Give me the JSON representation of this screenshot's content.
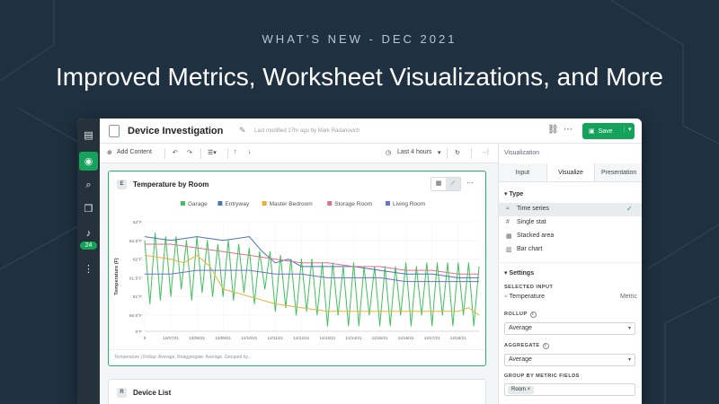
{
  "hero": {
    "eyebrow": "WHAT'S NEW - DEC 2021",
    "title": "Improved Metrics, Worksheet Visualizations, and More"
  },
  "colors": {
    "background": "#1f3040",
    "accent": "#15a25a",
    "rail": "#26323b"
  },
  "rail": {
    "items": [
      {
        "name": "dashboard-icon",
        "glyph": "▤"
      },
      {
        "name": "explore-icon",
        "glyph": "◉"
      },
      {
        "name": "search-icon",
        "glyph": "⌕"
      },
      {
        "name": "bookmark-icon",
        "glyph": "❐"
      },
      {
        "name": "bell-icon",
        "glyph": "♪"
      },
      {
        "name": "more-vertical-icon",
        "glyph": "⋮"
      }
    ],
    "badge": "24"
  },
  "topbar": {
    "title": "Device Investigation",
    "modified": "Last modified 17hr ago by Mark Radanovich",
    "save_label": "Save"
  },
  "toolbar": {
    "add_content": "Add Content",
    "time_range": "Last 4 hours"
  },
  "card": {
    "badge": "E",
    "title": "Temperature by Room",
    "footer": "Temperature | Rollup: Average, Reaggregate: Average, Grouped by..."
  },
  "card2": {
    "badge": "R",
    "title": "Device List"
  },
  "panel": {
    "heading": "Visualization",
    "tabs": [
      "Input",
      "Visualize",
      "Presentation"
    ],
    "active_tab": "Visualize",
    "type_heading": "Type",
    "types": [
      {
        "label": "Time series",
        "glyph": "≈",
        "selected": true
      },
      {
        "label": "Single stat",
        "glyph": "#",
        "selected": false
      },
      {
        "label": "Stacked area",
        "glyph": "▦",
        "selected": false
      },
      {
        "label": "Bar chart",
        "glyph": "▥",
        "selected": false
      }
    ],
    "settings_heading": "Settings",
    "selected_input_label": "SELECTED INPUT",
    "selected_input_value": "Temperature",
    "selected_input_kind": "Metric",
    "rollup_label": "ROLLUP",
    "rollup_value": "Average",
    "aggregate_label": "AGGREGATE",
    "aggregate_value": "Average",
    "group_label": "GROUP BY METRIC FIELDS",
    "group_chip": "Room"
  },
  "chart_data": {
    "type": "line",
    "title": "",
    "ylabel": "Temperature (F)",
    "xlabel": "",
    "ylim": [
      0,
      63
    ],
    "yticks": [
      {
        "value": 0,
        "label": "0°F"
      },
      {
        "value": 60.5,
        "label": "60.5°F"
      },
      {
        "value": 61,
        "label": "61°F"
      },
      {
        "value": 61.5,
        "label": "61.5°F"
      },
      {
        "value": 62,
        "label": "62°F"
      },
      {
        "value": 62.5,
        "label": "62.5°F"
      },
      {
        "value": 63,
        "label": "63°F"
      }
    ],
    "xlim": [
      0,
      12.8
    ],
    "xticks": [
      {
        "value": 0,
        "label": "0"
      },
      {
        "value": 1,
        "label": "12/07/21"
      },
      {
        "value": 2,
        "label": "12/08/21"
      },
      {
        "value": 3,
        "label": "12/09/21"
      },
      {
        "value": 4,
        "label": "12/10/21"
      },
      {
        "value": 5,
        "label": "12/11/21"
      },
      {
        "value": 6,
        "label": "12/12/21"
      },
      {
        "value": 7,
        "label": "12/13/21"
      },
      {
        "value": 8,
        "label": "12/14/21"
      },
      {
        "value": 9,
        "label": "12/15/21"
      },
      {
        "value": 10,
        "label": "12/16/21"
      },
      {
        "value": 11,
        "label": "12/17/21"
      },
      {
        "value": 12,
        "label": "12/18/21"
      }
    ],
    "legend_placement": "top",
    "grid": true,
    "series": [
      {
        "name": "Garage",
        "color": "#3fc15b",
        "points": [
          [
            0,
            62.5
          ],
          [
            0.2,
            60.8
          ],
          [
            0.4,
            62.7
          ],
          [
            0.6,
            60.9
          ],
          [
            0.8,
            62.6
          ],
          [
            1.0,
            61.0
          ],
          [
            1.2,
            62.6
          ],
          [
            1.4,
            61.2
          ],
          [
            1.6,
            62.5
          ],
          [
            1.8,
            60.9
          ],
          [
            2.0,
            62.6
          ],
          [
            2.2,
            61.1
          ],
          [
            2.4,
            62.5
          ],
          [
            2.6,
            61.0
          ],
          [
            2.8,
            62.4
          ],
          [
            3.0,
            61.0
          ],
          [
            3.2,
            62.5
          ],
          [
            3.4,
            60.9
          ],
          [
            3.6,
            62.4
          ],
          [
            3.8,
            61.1
          ],
          [
            4.0,
            62.3
          ],
          [
            4.2,
            60.8
          ],
          [
            4.4,
            62.2
          ],
          [
            4.6,
            61.2
          ],
          [
            4.8,
            62.2
          ],
          [
            5.0,
            60.6
          ],
          [
            5.2,
            62.1
          ],
          [
            5.4,
            60.7
          ],
          [
            5.6,
            62.0
          ],
          [
            5.8,
            60.5
          ],
          [
            6.0,
            62.0
          ],
          [
            6.2,
            60.6
          ],
          [
            6.4,
            62.0
          ],
          [
            6.6,
            60.5
          ],
          [
            6.8,
            61.9
          ],
          [
            7.0,
            60.4
          ],
          [
            7.2,
            61.9
          ],
          [
            7.4,
            60.5
          ],
          [
            7.6,
            61.8
          ],
          [
            7.8,
            60.4
          ],
          [
            8.0,
            61.9
          ],
          [
            8.2,
            60.4
          ],
          [
            8.4,
            61.8
          ],
          [
            8.6,
            60.5
          ],
          [
            8.8,
            61.8
          ],
          [
            9.0,
            60.4
          ],
          [
            9.2,
            61.8
          ],
          [
            9.4,
            60.4
          ],
          [
            9.6,
            61.8
          ],
          [
            9.8,
            60.5
          ],
          [
            10.0,
            61.9
          ],
          [
            10.2,
            60.4
          ],
          [
            10.4,
            61.8
          ],
          [
            10.6,
            60.5
          ],
          [
            10.8,
            61.9
          ],
          [
            11.0,
            60.4
          ],
          [
            11.2,
            61.9
          ],
          [
            11.4,
            60.5
          ],
          [
            11.6,
            61.9
          ],
          [
            11.8,
            60.4
          ],
          [
            12.0,
            61.9
          ],
          [
            12.2,
            60.5
          ],
          [
            12.4,
            61.9
          ],
          [
            12.6,
            60.4
          ],
          [
            12.8,
            61.8
          ]
        ]
      },
      {
        "name": "Entryway",
        "color": "#4a76b8",
        "points": [
          [
            0,
            62.6
          ],
          [
            1.0,
            62.5
          ],
          [
            2.0,
            62.6
          ],
          [
            3.0,
            62.5
          ],
          [
            4.0,
            62.6
          ],
          [
            4.5,
            62.2
          ],
          [
            5.0,
            61.9
          ],
          [
            5.5,
            62.0
          ],
          [
            6.0,
            61.8
          ],
          [
            7.0,
            61.8
          ],
          [
            8.0,
            61.8
          ],
          [
            9.0,
            61.7
          ],
          [
            10.0,
            61.6
          ],
          [
            11.0,
            61.6
          ],
          [
            12.0,
            61.5
          ],
          [
            12.8,
            61.5
          ]
        ]
      },
      {
        "name": "Master Bedroom",
        "color": "#e9b135",
        "points": [
          [
            0,
            62.1
          ],
          [
            1.0,
            62.0
          ],
          [
            1.5,
            61.9
          ],
          [
            2.0,
            62.1
          ],
          [
            2.5,
            61.8
          ],
          [
            3.0,
            61.2
          ],
          [
            4.0,
            61.0
          ],
          [
            5.0,
            60.8
          ],
          [
            6.0,
            60.7
          ],
          [
            7.0,
            60.6
          ],
          [
            8.0,
            60.6
          ],
          [
            9.0,
            60.6
          ],
          [
            10.0,
            60.6
          ],
          [
            11.0,
            60.6
          ],
          [
            12.0,
            60.6
          ],
          [
            12.4,
            60.7
          ],
          [
            12.8,
            60.5
          ]
        ]
      },
      {
        "name": "Storage Room",
        "color": "#e0708a",
        "points": [
          [
            0,
            62.4
          ],
          [
            1.0,
            62.4
          ],
          [
            2.0,
            62.3
          ],
          [
            3.0,
            62.2
          ],
          [
            4.0,
            62.1
          ],
          [
            5.0,
            62.0
          ],
          [
            6.0,
            61.9
          ],
          [
            7.0,
            61.9
          ],
          [
            8.0,
            61.8
          ],
          [
            9.0,
            61.8
          ],
          [
            10.0,
            61.7
          ],
          [
            11.0,
            61.7
          ],
          [
            12.0,
            61.6
          ],
          [
            12.8,
            61.6
          ]
        ]
      },
      {
        "name": "Living Room",
        "color": "#6e6fd0",
        "points": [
          [
            0,
            61.6
          ],
          [
            1.0,
            61.6
          ],
          [
            2.0,
            61.7
          ],
          [
            3.0,
            61.7
          ],
          [
            4.0,
            61.7
          ],
          [
            5.0,
            61.6
          ],
          [
            6.0,
            61.6
          ],
          [
            7.0,
            61.5
          ],
          [
            8.0,
            61.5
          ],
          [
            9.0,
            61.5
          ],
          [
            10.0,
            61.4
          ],
          [
            11.0,
            61.4
          ],
          [
            12.0,
            61.4
          ],
          [
            12.8,
            61.4
          ]
        ]
      }
    ]
  }
}
